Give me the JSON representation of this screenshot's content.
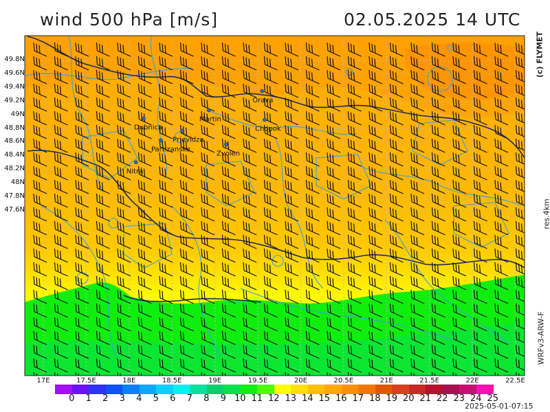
{
  "header": {
    "title": "wind 500 hPa [m/s]",
    "datetime": "02.05.2025   14 UTC"
  },
  "side": {
    "credit": "(c) FLYMET",
    "resolution": "res.4km",
    "model": "WRFv3-ARW-F"
  },
  "footer": {
    "issued": "2025-05-01-07:15"
  },
  "map": {
    "lat_labels": [
      "49.8N",
      "49.6N",
      "49.4N",
      "49.2N",
      "49N",
      "48.8N",
      "48.6N",
      "48.4N",
      "48.2N",
      "48N",
      "47.8N",
      "47.6N"
    ],
    "lon_labels": [
      "17E",
      "17.5E",
      "18E",
      "18.5E",
      "19E",
      "19.5E",
      "20E",
      "20.5E",
      "21E",
      "21.5E",
      "22E",
      "22.5E"
    ],
    "cities": [
      {
        "name": "Orava",
        "lon": 19.55,
        "lat": 49.35
      },
      {
        "name": "Dubnica",
        "lon": 18.17,
        "lat": 48.95
      },
      {
        "name": "Martin",
        "lon": 18.93,
        "lat": 49.07
      },
      {
        "name": "Chopok",
        "lon": 19.58,
        "lat": 48.93
      },
      {
        "name": "Prievidza",
        "lon": 18.62,
        "lat": 48.77
      },
      {
        "name": "Partizanske",
        "lon": 18.37,
        "lat": 48.63
      },
      {
        "name": "Zvolen",
        "lon": 19.13,
        "lat": 48.57
      },
      {
        "name": "Nitra",
        "lon": 18.08,
        "lat": 48.31
      }
    ],
    "wind_direction": "west",
    "colors": {
      "grid": "#b8b8b8",
      "border": "#1e2a55",
      "rivers": "#3aa0d8",
      "barbs": "#111111"
    }
  },
  "colorbar": {
    "labels": [
      "0",
      "1",
      "2",
      "3",
      "4",
      "5",
      "6",
      "7",
      "8",
      "9",
      "10",
      "11",
      "12",
      "13",
      "14",
      "15",
      "16",
      "17",
      "18",
      "19",
      "20",
      "21",
      "22",
      "23",
      "24",
      "25"
    ],
    "colors": [
      "#a010ff",
      "#6a10ff",
      "#3030ff",
      "#1050ff",
      "#0a80ff",
      "#08a8ff",
      "#08d0ff",
      "#08f0f0",
      "#08e0a0",
      "#08d070",
      "#08e050",
      "#10f010",
      "#50ff00",
      "#ffff00",
      "#ffe000",
      "#ffc000",
      "#ffa800",
      "#ff9000",
      "#f07800",
      "#e05800",
      "#d84020",
      "#c82828",
      "#b81030",
      "#a81050",
      "#c81070",
      "#ff10b0"
    ]
  }
}
